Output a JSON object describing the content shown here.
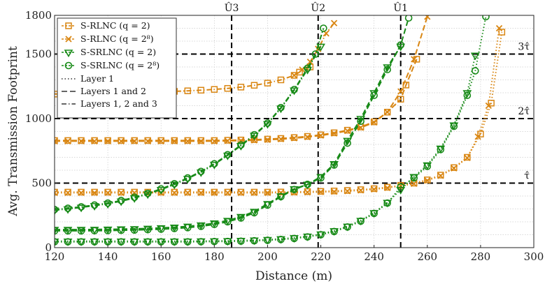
{
  "chart_data": {
    "type": "line",
    "xlabel": "Distance (m)",
    "ylabel": "Avg. Transmission Footprint",
    "xlim": [
      120,
      300
    ],
    "ylim": [
      0,
      1800
    ],
    "xticks": [
      120,
      140,
      160,
      180,
      200,
      220,
      240,
      260,
      280,
      300
    ],
    "yticks": [
      0,
      500,
      1000,
      1500,
      1800
    ],
    "grid": true,
    "legend_position": "top-left",
    "colors": {
      "srlnc": "#D98612",
      "ssrlnc": "#178A17",
      "guide": "#000000",
      "grid": "#cccccc"
    },
    "legend": {
      "markers": [
        {
          "name": "S-RLNC",
          "q": "(q = 2)",
          "marker": "square",
          "color": "#D98612"
        },
        {
          "name": "S-RLNC",
          "q": "(q = 2⁸)",
          "marker": "cross",
          "color": "#D98612"
        },
        {
          "name": "S-SRLNC",
          "q": "(q = 2)",
          "marker": "triangle-down",
          "color": "#178A17"
        },
        {
          "name": "S-SRLNC",
          "q": "(q = 2⁸)",
          "marker": "circle",
          "color": "#178A17"
        }
      ],
      "lines": [
        {
          "label": "Layer 1",
          "style": "dotted"
        },
        {
          "label": "Layers 1 and 2",
          "style": "dashed"
        },
        {
          "label": "Layers 1, 2 and 3",
          "style": "dashdot"
        }
      ]
    },
    "vertical_lines": [
      {
        "label": "Û3",
        "x": 186.5
      },
      {
        "label": "Û2",
        "x": 219
      },
      {
        "label": "Û1",
        "x": 250
      }
    ],
    "horizontal_lines": [
      {
        "label": "3τ̂",
        "y": 1500
      },
      {
        "label": "2τ̂",
        "y": 1000
      },
      {
        "label": "τ̂",
        "y": 500
      }
    ],
    "series": [
      {
        "name": "S-RLNC (q=2), Layer 1",
        "color": "#D98612",
        "marker": "square",
        "line": "dotted",
        "x": [
          120,
          125,
          130,
          135,
          140,
          145,
          150,
          155,
          160,
          165,
          170,
          175,
          180,
          185,
          190,
          195,
          200,
          205,
          210,
          215,
          220,
          225,
          230,
          235,
          240,
          245,
          250,
          255,
          260,
          265,
          270,
          275,
          280,
          284,
          288
        ],
        "y": [
          430,
          430,
          430,
          430,
          430,
          430,
          430,
          430,
          430,
          430,
          430,
          430,
          430,
          430,
          430,
          430,
          430,
          431,
          432,
          434,
          436,
          439,
          443,
          449,
          457,
          468,
          483,
          500,
          525,
          562,
          620,
          700,
          880,
          1120,
          1670
        ]
      },
      {
        "name": "S-RLNC (q=2^8), Layer 1",
        "color": "#D98612",
        "marker": "cross",
        "line": "dotted",
        "x": [
          120,
          125,
          130,
          135,
          140,
          145,
          150,
          155,
          160,
          165,
          170,
          175,
          180,
          185,
          190,
          195,
          200,
          205,
          210,
          215,
          220,
          225,
          230,
          235,
          240,
          245,
          250,
          255,
          260,
          265,
          270,
          275,
          279,
          283,
          287
        ],
        "y": [
          425,
          425,
          425,
          425,
          425,
          425,
          425,
          425,
          425,
          425,
          425,
          425,
          425,
          425,
          425,
          425,
          425,
          426,
          427,
          429,
          431,
          434,
          438,
          444,
          452,
          463,
          478,
          495,
          520,
          557,
          615,
          695,
          860,
          1100,
          1700
        ]
      },
      {
        "name": "S-RLNC (q=2), Layers 1 and 2",
        "color": "#D98612",
        "marker": "square",
        "line": "dashed",
        "x": [
          120,
          125,
          130,
          135,
          140,
          145,
          150,
          155,
          160,
          165,
          170,
          175,
          180,
          185,
          190,
          195,
          200,
          205,
          210,
          215,
          220,
          225,
          230,
          235,
          240,
          245,
          250,
          252,
          256
        ],
        "y": [
          830,
          830,
          830,
          830,
          830,
          830,
          830,
          830,
          830,
          830,
          830,
          830,
          830,
          832,
          834,
          837,
          841,
          846,
          853,
          862,
          874,
          890,
          910,
          935,
          975,
          1050,
          1150,
          1260,
          1460
        ]
      },
      {
        "name": "S-RLNC (q=2^8), Layers 1 and 2",
        "color": "#D98612",
        "marker": "cross",
        "line": "dashed",
        "x": [
          120,
          125,
          130,
          135,
          140,
          145,
          150,
          155,
          160,
          165,
          170,
          175,
          180,
          185,
          190,
          195,
          200,
          205,
          210,
          215,
          220,
          225,
          230,
          235,
          240,
          245,
          250,
          255,
          260
        ],
        "y": [
          825,
          825,
          825,
          825,
          825,
          825,
          825,
          825,
          825,
          825,
          825,
          825,
          825,
          827,
          829,
          832,
          836,
          841,
          848,
          857,
          869,
          885,
          905,
          930,
          970,
          1050,
          1210,
          1460,
          1790
        ]
      },
      {
        "name": "S-RLNC (q=2), Layers 1, 2 and 3",
        "color": "#D98612",
        "marker": "square",
        "line": "dashdot",
        "x": [
          120,
          125,
          130,
          135,
          140,
          145,
          150,
          155,
          160,
          165,
          170,
          175,
          180,
          185,
          190,
          195,
          200,
          205,
          210,
          212,
          216
        ],
        "y": [
          1190,
          1192,
          1194,
          1196,
          1198,
          1200,
          1202,
          1205,
          1208,
          1211,
          1215,
          1220,
          1226,
          1234,
          1244,
          1258,
          1275,
          1300,
          1335,
          1360,
          1400
        ]
      },
      {
        "name": "S-RLNC (q=2^8), Layers 1, 2 and 3",
        "color": "#D98612",
        "marker": "cross",
        "line": "dashdot",
        "x": [
          210,
          213,
          216,
          219,
          222,
          225
        ],
        "y": [
          1335,
          1380,
          1440,
          1540,
          1660,
          1740
        ]
      },
      {
        "name": "S-SRLNC (q=2), Layer 1",
        "color": "#178A17",
        "marker": "triangle-down",
        "line": "dotted",
        "x": [
          120,
          125,
          130,
          135,
          140,
          145,
          150,
          155,
          160,
          165,
          170,
          175,
          180,
          185,
          190,
          195,
          200,
          205,
          210,
          215,
          220,
          225,
          230,
          235,
          240,
          245,
          250,
          255,
          260,
          265,
          270,
          275,
          278
        ],
        "y": [
          50,
          50,
          50,
          50,
          50,
          50,
          50,
          50,
          50,
          50,
          50,
          51,
          52,
          53,
          55,
          58,
          62,
          68,
          76,
          88,
          105,
          130,
          165,
          210,
          270,
          350,
          450,
          550,
          640,
          770,
          950,
          1200,
          1490
        ]
      },
      {
        "name": "S-SRLNC (q=2^8), Layer 1",
        "color": "#178A17",
        "marker": "circle",
        "line": "dotted",
        "x": [
          120,
          125,
          130,
          135,
          140,
          145,
          150,
          155,
          160,
          165,
          170,
          175,
          180,
          185,
          190,
          195,
          200,
          205,
          210,
          215,
          220,
          225,
          230,
          235,
          240,
          245,
          250,
          255,
          260,
          265,
          270,
          275,
          278,
          282
        ],
        "y": [
          45,
          45,
          45,
          45,
          45,
          45,
          45,
          45,
          45,
          45,
          45,
          46,
          47,
          48,
          50,
          53,
          57,
          63,
          71,
          83,
          100,
          125,
          160,
          205,
          265,
          345,
          470,
          540,
          630,
          760,
          940,
          1180,
          1370,
          1790
        ]
      },
      {
        "name": "S-SRLNC (q=2), Layers 1 and 2",
        "color": "#178A17",
        "marker": "triangle-down",
        "line": "dashed",
        "x": [
          120,
          125,
          130,
          135,
          140,
          145,
          150,
          155,
          160,
          165,
          170,
          175,
          180,
          185,
          190,
          195,
          200,
          205,
          210,
          215,
          220,
          225,
          230,
          235,
          240,
          245,
          250
        ],
        "y": [
          140,
          140,
          140,
          141,
          142,
          144,
          146,
          149,
          153,
          158,
          165,
          175,
          190,
          210,
          240,
          280,
          340,
          400,
          455,
          490,
          550,
          650,
          830,
          1000,
          1200,
          1400,
          1560
        ]
      },
      {
        "name": "S-SRLNC (q=2^8), Layers 1 and 2",
        "color": "#178A17",
        "marker": "circle",
        "line": "dashed",
        "x": [
          120,
          125,
          130,
          135,
          140,
          145,
          150,
          155,
          160,
          165,
          170,
          175,
          180,
          185,
          190,
          195,
          200,
          205,
          210,
          215,
          220,
          225,
          230,
          235,
          240,
          245,
          250,
          253
        ],
        "y": [
          130,
          130,
          130,
          131,
          132,
          134,
          136,
          139,
          143,
          148,
          155,
          165,
          180,
          200,
          230,
          270,
          330,
          395,
          450,
          490,
          540,
          640,
          810,
          980,
          1180,
          1380,
          1570,
          1780
        ]
      },
      {
        "name": "S-SRLNC (q=2), Layers 1, 2 and 3",
        "color": "#178A17",
        "marker": "triangle-down",
        "line": "dashdot",
        "x": [
          120,
          125,
          130,
          135,
          140,
          145,
          150,
          155,
          160,
          165,
          170,
          175,
          180,
          185,
          190,
          195,
          200,
          205,
          210,
          215,
          220
        ],
        "y": [
          290,
          300,
          312,
          325,
          340,
          360,
          385,
          415,
          450,
          490,
          535,
          585,
          645,
          715,
          790,
          870,
          960,
          1080,
          1220,
          1380,
          1560
        ]
      },
      {
        "name": "S-SRLNC (q=2^8), Layers 1, 2 and 3",
        "color": "#178A17",
        "marker": "circle",
        "line": "dashdot",
        "x": [
          120,
          125,
          130,
          135,
          140,
          145,
          150,
          155,
          160,
          165,
          170,
          175,
          180,
          185,
          190,
          195,
          200,
          205,
          210,
          215,
          218,
          221
        ],
        "y": [
          295,
          305,
          316,
          330,
          345,
          365,
          390,
          420,
          455,
          495,
          540,
          590,
          650,
          720,
          795,
          875,
          965,
          1085,
          1225,
          1390,
          1500,
          1700
        ]
      }
    ]
  }
}
